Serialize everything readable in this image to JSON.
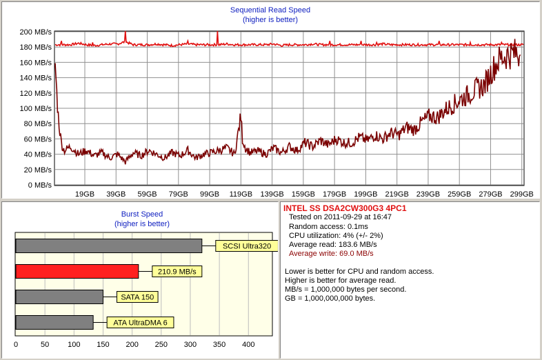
{
  "colors": {
    "title_blue": "#1020c0",
    "read_red": "#e01010",
    "write_darkred": "#7a0000",
    "bar_gray": "#808080",
    "bar_highlight": "#ff2020",
    "label_yellow": "#ffff99",
    "plot_bg": "#ffffff",
    "grid": "#909090"
  },
  "chart_data": [
    {
      "type": "line",
      "title": "Sequential Read Speed",
      "subtitle": "(higher is better)",
      "ylim": [
        0,
        200
      ],
      "xlim": [
        0,
        300
      ],
      "y_ticks": [
        0,
        20,
        40,
        60,
        80,
        100,
        120,
        140,
        160,
        180,
        200
      ],
      "y_tick_labels": [
        "0 MB/s",
        "20 MB/s",
        "40 MB/s",
        "60 MB/s",
        "80 MB/s",
        "100 MB/s",
        "120 MB/s",
        "140 MB/s",
        "160 MB/s",
        "180 MB/s",
        "200 MB/s"
      ],
      "x_ticks": [
        19,
        39,
        59,
        79,
        99,
        119,
        139,
        159,
        179,
        199,
        219,
        239,
        259,
        279,
        299
      ],
      "x_tick_labels": [
        "19GB",
        "39GB",
        "59GB",
        "79GB",
        "99GB",
        "119GB",
        "139GB",
        "159GB",
        "179GB",
        "199GB",
        "219GB",
        "239GB",
        "259GB",
        "279GB",
        "299GB"
      ],
      "grid": true,
      "series": [
        {
          "key": "read",
          "color": "#e01010",
          "x": [
            0,
            5,
            10,
            15,
            20,
            25,
            30,
            35,
            40,
            45,
            50,
            55,
            60,
            65,
            70,
            75,
            80,
            85,
            90,
            95,
            100,
            105,
            110,
            115,
            120,
            125,
            130,
            135,
            140,
            145,
            150,
            155,
            160,
            165,
            170,
            175,
            180,
            185,
            190,
            195,
            200,
            205,
            210,
            215,
            220,
            225,
            230,
            235,
            240,
            245,
            250,
            255,
            260,
            265,
            270,
            275,
            280,
            285,
            290,
            295,
            300
          ],
          "y": [
            183,
            183,
            183,
            185,
            183,
            182,
            183,
            184,
            184,
            187,
            183,
            183,
            183,
            184,
            183,
            182,
            183,
            184,
            183,
            183,
            183,
            183,
            184,
            183,
            183,
            183,
            183,
            183,
            184,
            182,
            183,
            183,
            183,
            184,
            183,
            183,
            183,
            183,
            183,
            183,
            183,
            183,
            184,
            183,
            183,
            183,
            183,
            183,
            183,
            183,
            183,
            183,
            183,
            183,
            183,
            183,
            183,
            183,
            183,
            183,
            183
          ],
          "spikes": [
            [
              4,
              188
            ],
            [
              24,
              186
            ],
            [
              45,
              201
            ],
            [
              85,
              188
            ],
            [
              104,
              201
            ],
            [
              176,
              188
            ],
            [
              196,
              188
            ],
            [
              206,
              186
            ],
            [
              246,
              188
            ],
            [
              266,
              186
            ],
            [
              286,
              186
            ]
          ]
        },
        {
          "key": "write",
          "color": "#7a0000",
          "x": [
            0,
            1,
            2,
            3,
            4,
            5,
            6,
            10,
            15,
            20,
            25,
            30,
            35,
            40,
            45,
            50,
            55,
            60,
            65,
            70,
            75,
            80,
            85,
            90,
            95,
            100,
            105,
            110,
            115,
            119,
            120,
            122,
            125,
            130,
            135,
            140,
            145,
            150,
            155,
            160,
            165,
            170,
            175,
            180,
            185,
            190,
            195,
            200,
            205,
            210,
            215,
            220,
            225,
            230,
            235,
            240,
            245,
            250,
            255,
            260,
            265,
            270,
            275,
            280,
            285,
            290,
            295,
            298
          ],
          "y": [
            160,
            120,
            90,
            70,
            55,
            48,
            45,
            50,
            40,
            45,
            38,
            42,
            35,
            40,
            30,
            42,
            38,
            45,
            40,
            35,
            42,
            38,
            45,
            35,
            40,
            42,
            45,
            48,
            40,
            90,
            60,
            48,
            42,
            44,
            40,
            48,
            42,
            50,
            45,
            55,
            50,
            58,
            52,
            60,
            55,
            55,
            62,
            58,
            65,
            60,
            68,
            65,
            75,
            72,
            82,
            90,
            88,
            98,
            105,
            112,
            118,
            125,
            130,
            150,
            165,
            170,
            172,
            170
          ]
        }
      ]
    },
    {
      "type": "bar",
      "orientation": "horizontal",
      "title": "Burst Speed",
      "subtitle": "(higher is better)",
      "xlim": [
        0,
        440
      ],
      "x_ticks": [
        0,
        50,
        100,
        150,
        200,
        250,
        300,
        350,
        400
      ],
      "categories": [
        "SCSI Ultra320",
        "210.9 MB/s",
        "SATA 150",
        "ATA UltraDMA 6"
      ],
      "values": [
        320,
        210.9,
        150,
        133
      ],
      "highlight_index": 1,
      "grid": true
    }
  ],
  "info": {
    "drive_name": "INTEL SS DSA2CW300G3 4PC1",
    "tested_on": "Tested on 2011-09-29 at 16:47",
    "random_access": "Random access: 0.1ms",
    "cpu_util": "CPU utilization: 4% (+/- 2%)",
    "avg_read": "Average read: 183.6 MB/s",
    "avg_write": "Average write: 69.0 MB/s",
    "notes": [
      "Lower is better for CPU and random access.",
      "Higher is better for average read.",
      "MB/s = 1,000,000 bytes per second.",
      "GB = 1,000,000,000 bytes."
    ]
  }
}
